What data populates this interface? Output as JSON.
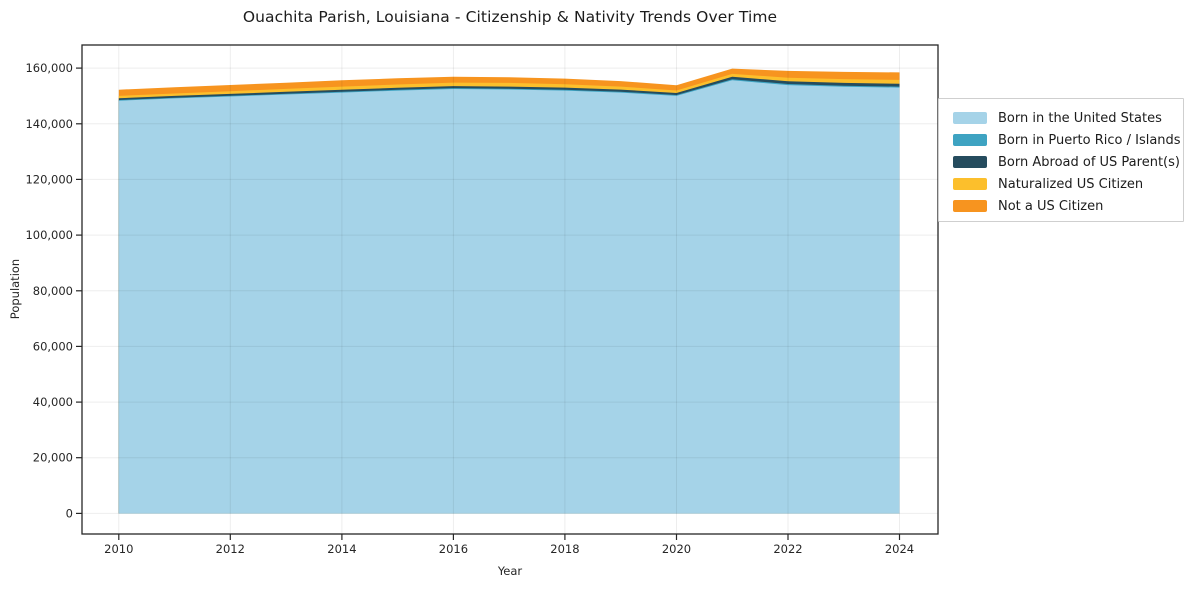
{
  "chart_data": {
    "type": "area",
    "stacked": true,
    "title": "Ouachita Parish, Louisiana - Citizenship & Nativity Trends Over Time",
    "xlabel": "Year",
    "ylabel": "Population",
    "grid": true,
    "legend_position": "right",
    "background_color": "#ffffff",
    "spine_color": "#262626",
    "x": [
      2010,
      2011,
      2012,
      2013,
      2014,
      2015,
      2016,
      2017,
      2018,
      2019,
      2020,
      2021,
      2022,
      2023,
      2024
    ],
    "x_ticks": [
      2010,
      2012,
      2014,
      2016,
      2018,
      2020,
      2022,
      2024
    ],
    "x_tick_labels": [
      "2010",
      "2012",
      "2014",
      "2016",
      "2018",
      "2020",
      "2022",
      "2024"
    ],
    "y_ticks": [
      0,
      20000,
      40000,
      60000,
      80000,
      100000,
      120000,
      140000,
      160000
    ],
    "y_tick_labels": [
      "0",
      "20,000",
      "40,000",
      "60,000",
      "80,000",
      "100,000",
      "120,000",
      "140,000",
      "160,000"
    ],
    "xlim": [
      2009.34,
      2024.69
    ],
    "ylim": [
      -7400,
      168300
    ],
    "series": [
      {
        "name": "Born in the United States",
        "color": "#a5d3e8",
        "values": [
          148300,
          149100,
          149800,
          150500,
          151200,
          151900,
          152500,
          152300,
          151900,
          151200,
          150000,
          155600,
          153900,
          153300,
          153000
        ]
      },
      {
        "name": "Born in Puerto Rico / Islands",
        "color": "#3ea3c2",
        "values": [
          250,
          250,
          260,
          270,
          280,
          290,
          300,
          310,
          320,
          330,
          340,
          420,
          400,
          380,
          370
        ]
      },
      {
        "name": "Born Abroad of US Parent(s)",
        "color": "#254c5e",
        "values": [
          650,
          660,
          680,
          700,
          720,
          730,
          750,
          760,
          760,
          740,
          700,
          900,
          950,
          1000,
          1000
        ]
      },
      {
        "name": "Naturalized US Citizen",
        "color": "#fcbf2c",
        "values": [
          800,
          850,
          950,
          1050,
          1150,
          1200,
          1250,
          1300,
          1250,
          1100,
          900,
          1000,
          1300,
          1350,
          1400
        ]
      },
      {
        "name": "Not a US Citizen",
        "color": "#f7941f",
        "values": [
          2250,
          2250,
          2250,
          2250,
          2250,
          2200,
          2100,
          2050,
          2000,
          1950,
          1900,
          1900,
          2450,
          2600,
          2700
        ]
      }
    ]
  }
}
